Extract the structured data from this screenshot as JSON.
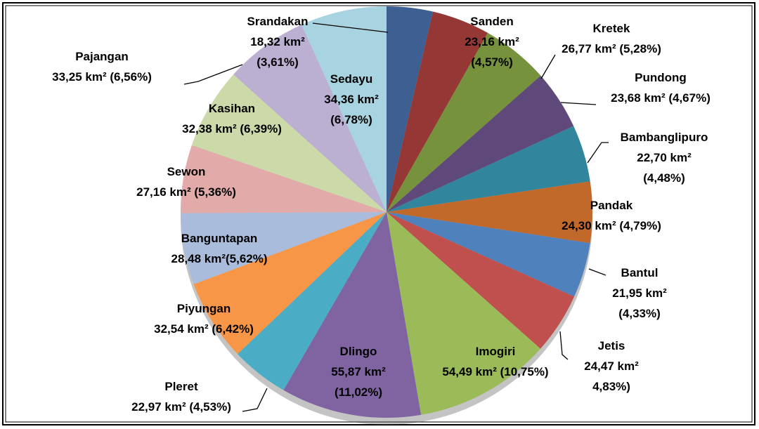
{
  "chart_data": {
    "type": "pie",
    "categories": [
      "Srandakan",
      "Sanden",
      "Kretek",
      "Pundong",
      "Bambanglipuro",
      "Pandak",
      "Bantul",
      "Jetis",
      "Imogiri",
      "Dlingo",
      "Pleret",
      "Piyungan",
      "Banguntapan",
      "Sewon",
      "Kasihan",
      "Pajangan",
      "Sedayu"
    ],
    "values": [
      18.32,
      23.16,
      26.77,
      23.68,
      22.7,
      24.3,
      21.95,
      24.47,
      54.49,
      55.87,
      22.97,
      32.54,
      28.48,
      27.16,
      32.38,
      33.25,
      34.36
    ],
    "value_labels": [
      "18,32 km² (3,61%)",
      "23,16 km² (4,57%)",
      "26,77 km² (5,28%)",
      "23,68 km² (4,67%)",
      "22,70 km² (4,48%)",
      "24,30 km² (4,79%)",
      "21,95 km² (4,33%)",
      "24,47 km² 4,83%)",
      "54,49 km² (10,75%)",
      "55,87 km² (11,02%)",
      "22,97 km² (4,53%)",
      "32,54 km² (6,42%)",
      "28,48 km²(5,62%)",
      "27,16 km² (5,36%)",
      "32,38 km² (6,39%)",
      "33,25 km² (6,56%)",
      "34,36 km² (6,78%)"
    ],
    "colors": [
      "#3d5f92",
      "#953735",
      "#76923c",
      "#5f497a",
      "#31859c",
      "#c0692a",
      "#4f81bd",
      "#c0504d",
      "#9bbb59",
      "#8064a2",
      "#4bacc6",
      "#f79646",
      "#a9bcdc",
      "#e2aaa9",
      "#cbdaa8",
      "#bcb0d2",
      "#a8d3e0"
    ]
  }
}
